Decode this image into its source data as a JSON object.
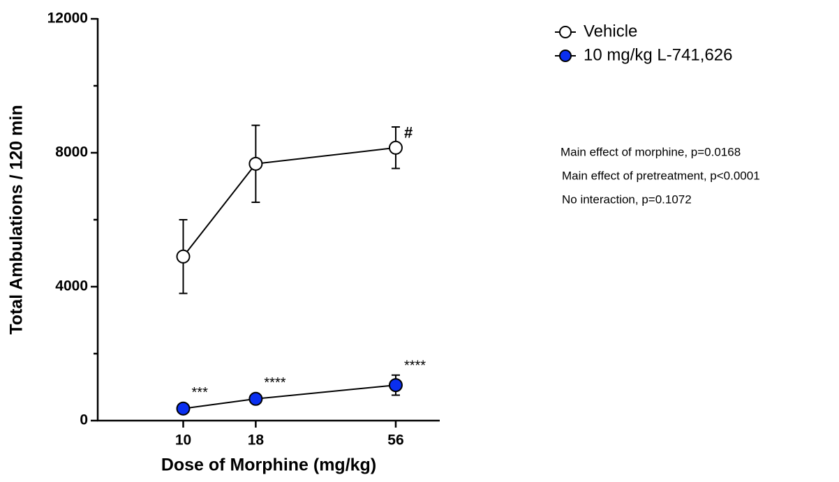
{
  "chart_data": {
    "type": "line",
    "x_label": "Dose of Morphine (mg/kg)",
    "y_label": "Total Ambulations / 120 min",
    "x": [
      10,
      18,
      56
    ],
    "xlim": [
      5,
      80
    ],
    "xscale": "log",
    "xticks": [
      10,
      18,
      56
    ],
    "ylim": [
      0,
      12000
    ],
    "yticks": [
      0,
      4000,
      8000,
      12000
    ],
    "yminorticks": [
      2000,
      6000,
      10000
    ],
    "series": [
      {
        "name": "Vehicle",
        "color": "#ffffff",
        "values": [
          4900,
          7670,
          8150
        ],
        "errors": [
          1100,
          1150,
          620
        ],
        "annotations": [
          null,
          null,
          "#"
        ]
      },
      {
        "name": "10 mg/kg L-741,626",
        "color": "#0a2ff0",
        "values": [
          360,
          650,
          1060
        ],
        "errors": [
          80,
          100,
          300
        ],
        "annotations": [
          "***",
          "****",
          "****"
        ]
      }
    ],
    "legend_position": "upper right",
    "notes": [
      "Main effect of morphine, p=0.0168",
      "Main effect of pretreatment, p<0.0001",
      "No interaction, p=0.1072"
    ]
  }
}
